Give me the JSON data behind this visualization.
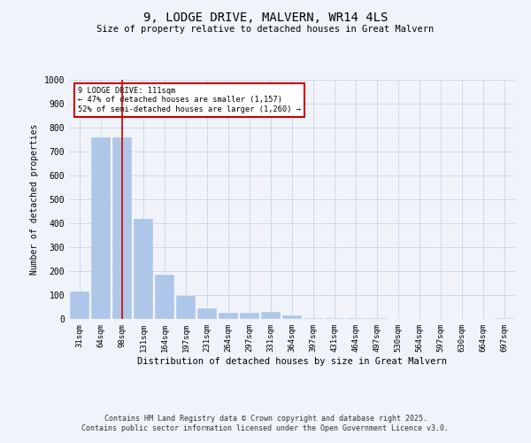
{
  "title_line1": "9, LODGE DRIVE, MALVERN, WR14 4LS",
  "title_line2": "Size of property relative to detached houses in Great Malvern",
  "xlabel": "Distribution of detached houses by size in Great Malvern",
  "ylabel": "Number of detached properties",
  "footer_line1": "Contains HM Land Registry data © Crown copyright and database right 2025.",
  "footer_line2": "Contains public sector information licensed under the Open Government Licence v3.0.",
  "annotation_line1": "9 LODGE DRIVE: 111sqm",
  "annotation_line2": "← 47% of detached houses are smaller (1,157)",
  "annotation_line3": "52% of semi-detached houses are larger (1,260) →",
  "property_size_sqm": 111,
  "vline_x": 2,
  "bar_color": "#aec6e8",
  "vline_color": "#cc0000",
  "annotation_box_color": "#cc0000",
  "background_color": "#f0f4fa",
  "grid_color": "#c8d4e8",
  "categories": [
    "31sqm",
    "64sqm",
    "98sqm",
    "131sqm",
    "164sqm",
    "197sqm",
    "231sqm",
    "264sqm",
    "297sqm",
    "331sqm",
    "364sqm",
    "397sqm",
    "431sqm",
    "464sqm",
    "497sqm",
    "530sqm",
    "564sqm",
    "597sqm",
    "630sqm",
    "664sqm",
    "697sqm"
  ],
  "values": [
    115,
    760,
    760,
    420,
    185,
    95,
    45,
    25,
    25,
    30,
    15,
    5,
    5,
    5,
    5,
    0,
    0,
    0,
    0,
    0,
    5
  ],
  "ylim": [
    0,
    1000
  ],
  "yticks": [
    0,
    100,
    200,
    300,
    400,
    500,
    600,
    700,
    800,
    900,
    1000
  ]
}
